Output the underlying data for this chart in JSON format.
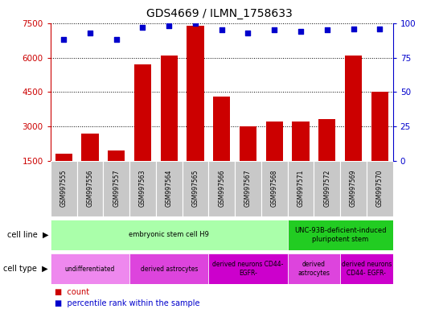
{
  "title": "GDS4669 / ILMN_1758633",
  "samples": [
    "GSM997555",
    "GSM997556",
    "GSM997557",
    "GSM997563",
    "GSM997564",
    "GSM997565",
    "GSM997566",
    "GSM997567",
    "GSM997568",
    "GSM997571",
    "GSM997572",
    "GSM997569",
    "GSM997570"
  ],
  "counts": [
    1800,
    2700,
    1950,
    5700,
    6100,
    7400,
    4300,
    3000,
    3200,
    3200,
    3300,
    6100,
    4500
  ],
  "percentiles": [
    88,
    93,
    88,
    97,
    98,
    100,
    95,
    93,
    95,
    94,
    95,
    96,
    96
  ],
  "ylim_left": [
    1500,
    7500
  ],
  "ylim_right": [
    0,
    100
  ],
  "yticks_left": [
    1500,
    3000,
    4500,
    6000,
    7500
  ],
  "yticks_right": [
    0,
    25,
    50,
    75,
    100
  ],
  "bar_color": "#cc0000",
  "dot_color": "#0000cc",
  "tick_bg": "#c8c8c8",
  "cell_line_row": {
    "segments": [
      {
        "text": "embryonic stem cell H9",
        "span": [
          0,
          9
        ],
        "color": "#aaffaa"
      },
      {
        "text": "UNC-93B-deficient-induced\npluripotent stem",
        "span": [
          9,
          13
        ],
        "color": "#22cc22"
      }
    ]
  },
  "cell_type_row": {
    "segments": [
      {
        "text": "undifferentiated",
        "span": [
          0,
          3
        ],
        "color": "#ee88ee"
      },
      {
        "text": "derived astrocytes",
        "span": [
          3,
          6
        ],
        "color": "#dd44dd"
      },
      {
        "text": "derived neurons CD44-\nEGFR-",
        "span": [
          6,
          9
        ],
        "color": "#cc00cc"
      },
      {
        "text": "derived\nastrocytes",
        "span": [
          9,
          11
        ],
        "color": "#dd44dd"
      },
      {
        "text": "derived neurons\nCD44- EGFR-",
        "span": [
          11,
          13
        ],
        "color": "#cc00cc"
      }
    ]
  },
  "legend_count_color": "#cc0000",
  "legend_pct_color": "#0000cc"
}
